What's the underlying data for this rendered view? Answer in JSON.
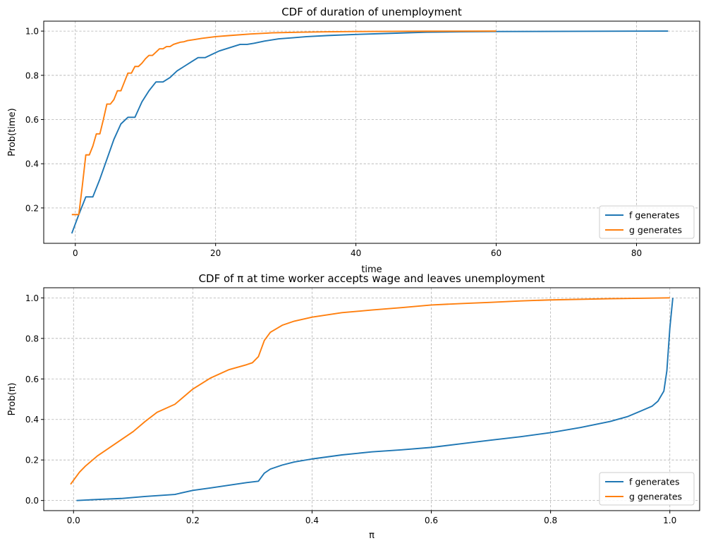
{
  "chart_data": [
    {
      "type": "line",
      "title": "CDF of duration of unemployment",
      "xlabel": "time",
      "ylabel": "Prob(time)",
      "xlim": [
        -4.5,
        89
      ],
      "ylim": [
        0.04,
        1.045
      ],
      "xticks": [
        0,
        20,
        40,
        60,
        80
      ],
      "yticks": [
        0.2,
        0.4,
        0.6,
        0.8,
        1.0
      ],
      "xtick_labels": [
        "0",
        "20",
        "40",
        "60",
        "80"
      ],
      "ytick_labels": [
        "0.2",
        "0.4",
        "0.6",
        "0.8",
        "1.0"
      ],
      "grid": true,
      "legend_position": "lower-right",
      "series": [
        {
          "name": "f generates",
          "color": "#1f77b4",
          "x": [
            -0.5,
            0.5,
            1.5,
            2.5,
            3.5,
            4.5,
            5.5,
            6.5,
            7.5,
            8.5,
            9.5,
            10.5,
            11.5,
            12.5,
            13.5,
            14.5,
            15.5,
            16.5,
            17.5,
            18.5,
            19.5,
            20.5,
            21.5,
            22.5,
            23.5,
            24.5,
            25.5,
            27,
            29,
            31,
            33,
            36,
            40,
            45,
            50,
            55,
            60,
            70,
            84.5
          ],
          "y": [
            0.085,
            0.17,
            0.25,
            0.25,
            0.33,
            0.42,
            0.51,
            0.58,
            0.61,
            0.61,
            0.68,
            0.73,
            0.77,
            0.77,
            0.79,
            0.82,
            0.84,
            0.86,
            0.88,
            0.88,
            0.895,
            0.91,
            0.92,
            0.93,
            0.94,
            0.94,
            0.945,
            0.955,
            0.965,
            0.97,
            0.975,
            0.98,
            0.985,
            0.99,
            0.995,
            0.997,
            0.998,
            0.999,
            1.0
          ]
        },
        {
          "name": "g generates",
          "color": "#ff7f0e",
          "x": [
            -0.5,
            0.5,
            1.0,
            1.5,
            2.0,
            2.5,
            3.0,
            3.5,
            4.0,
            4.5,
            5.0,
            5.5,
            6.0,
            6.5,
            7.0,
            7.5,
            8.0,
            8.5,
            9.0,
            9.5,
            10.0,
            10.5,
            11.0,
            11.5,
            12.0,
            12.5,
            13.0,
            13.5,
            14.0,
            14.5,
            15.0,
            15.5,
            16.0,
            17.0,
            18.0,
            19.0,
            20.0,
            22.0,
            25.0,
            28.0,
            32.0,
            36.0,
            40.0,
            45.0,
            50.0,
            55.0,
            60.0
          ],
          "y": [
            0.17,
            0.17,
            0.3,
            0.44,
            0.44,
            0.48,
            0.535,
            0.535,
            0.6,
            0.67,
            0.67,
            0.69,
            0.73,
            0.73,
            0.77,
            0.81,
            0.81,
            0.84,
            0.84,
            0.855,
            0.875,
            0.89,
            0.89,
            0.905,
            0.92,
            0.92,
            0.93,
            0.93,
            0.94,
            0.945,
            0.95,
            0.952,
            0.957,
            0.962,
            0.967,
            0.971,
            0.975,
            0.98,
            0.987,
            0.992,
            0.995,
            0.997,
            0.998,
            0.999,
            0.9995,
            0.9998,
            1.0
          ]
        }
      ]
    },
    {
      "type": "line",
      "title": "CDF of π at time worker accepts wage and leaves unemployment",
      "xlabel": "π",
      "ylabel": "Prob(π)",
      "xlim": [
        -0.05,
        1.05
      ],
      "ylim": [
        -0.05,
        1.05
      ],
      "xticks": [
        0.0,
        0.2,
        0.4,
        0.6,
        0.8,
        1.0
      ],
      "yticks": [
        0.0,
        0.2,
        0.4,
        0.6,
        0.8,
        1.0
      ],
      "xtick_labels": [
        "0.0",
        "0.2",
        "0.4",
        "0.6",
        "0.8",
        "1.0"
      ],
      "ytick_labels": [
        "0.0",
        "0.2",
        "0.4",
        "0.6",
        "0.8",
        "1.0"
      ],
      "grid": true,
      "legend_position": "lower-right",
      "series": [
        {
          "name": "f generates",
          "color": "#1f77b4",
          "x": [
            0.005,
            0.04,
            0.08,
            0.12,
            0.17,
            0.2,
            0.23,
            0.26,
            0.29,
            0.31,
            0.32,
            0.33,
            0.35,
            0.37,
            0.4,
            0.45,
            0.5,
            0.55,
            0.6,
            0.65,
            0.7,
            0.75,
            0.8,
            0.85,
            0.9,
            0.93,
            0.95,
            0.97,
            0.98,
            0.99,
            0.995,
            1.0,
            1.005
          ],
          "y": [
            0.0,
            0.005,
            0.01,
            0.02,
            0.03,
            0.05,
            0.062,
            0.075,
            0.088,
            0.095,
            0.135,
            0.155,
            0.175,
            0.19,
            0.205,
            0.225,
            0.24,
            0.25,
            0.262,
            0.28,
            0.298,
            0.315,
            0.335,
            0.36,
            0.39,
            0.415,
            0.44,
            0.465,
            0.49,
            0.54,
            0.64,
            0.85,
            1.0
          ]
        },
        {
          "name": "g generates",
          "color": "#ff7f0e",
          "x": [
            -0.005,
            0.0,
            0.01,
            0.02,
            0.04,
            0.06,
            0.08,
            0.1,
            0.12,
            0.14,
            0.17,
            0.2,
            0.23,
            0.26,
            0.29,
            0.3,
            0.31,
            0.32,
            0.33,
            0.35,
            0.37,
            0.4,
            0.45,
            0.5,
            0.55,
            0.6,
            0.65,
            0.7,
            0.75,
            0.8,
            0.85,
            0.9,
            0.95,
            1.0
          ],
          "y": [
            0.08,
            0.1,
            0.14,
            0.17,
            0.22,
            0.26,
            0.3,
            0.34,
            0.39,
            0.435,
            0.475,
            0.55,
            0.605,
            0.645,
            0.67,
            0.68,
            0.71,
            0.79,
            0.83,
            0.865,
            0.885,
            0.905,
            0.927,
            0.94,
            0.952,
            0.965,
            0.972,
            0.978,
            0.985,
            0.99,
            0.993,
            0.996,
            0.998,
            1.0
          ]
        }
      ]
    }
  ]
}
